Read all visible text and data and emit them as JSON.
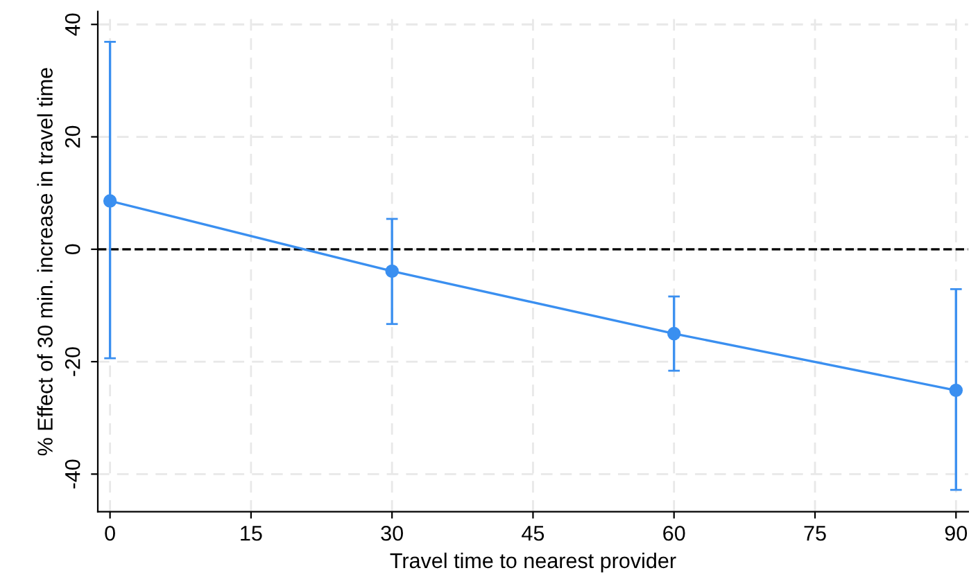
{
  "chart_data": {
    "type": "line",
    "xlabel": "Travel time to nearest provider",
    "ylabel": "% Effect of 30 min. increase in travel time",
    "x": [
      0,
      30,
      60,
      90
    ],
    "series": [
      {
        "color": "#3a8ff0",
        "values": [
          8.6,
          -3.9,
          -15.0,
          -25.1
        ],
        "errors": [
          [
            -19.4,
            36.9
          ],
          [
            -13.3,
            5.4
          ],
          [
            -21.6,
            -8.4
          ],
          [
            -42.8,
            -7.1
          ]
        ]
      }
    ],
    "marker": "circle",
    "line_style": "solid",
    "grid": true,
    "xlim": [
      -1.3,
      91.3
    ],
    "xticks": [
      0,
      15,
      30,
      45,
      60,
      75,
      90
    ],
    "ylim": [
      -46.7,
      42.3
    ],
    "yticks": [
      -40,
      -20,
      0,
      20,
      40
    ],
    "ref_lines": [
      {
        "axis": "y",
        "value": 0,
        "color": "#000000",
        "line_style": "dashed"
      }
    ]
  }
}
